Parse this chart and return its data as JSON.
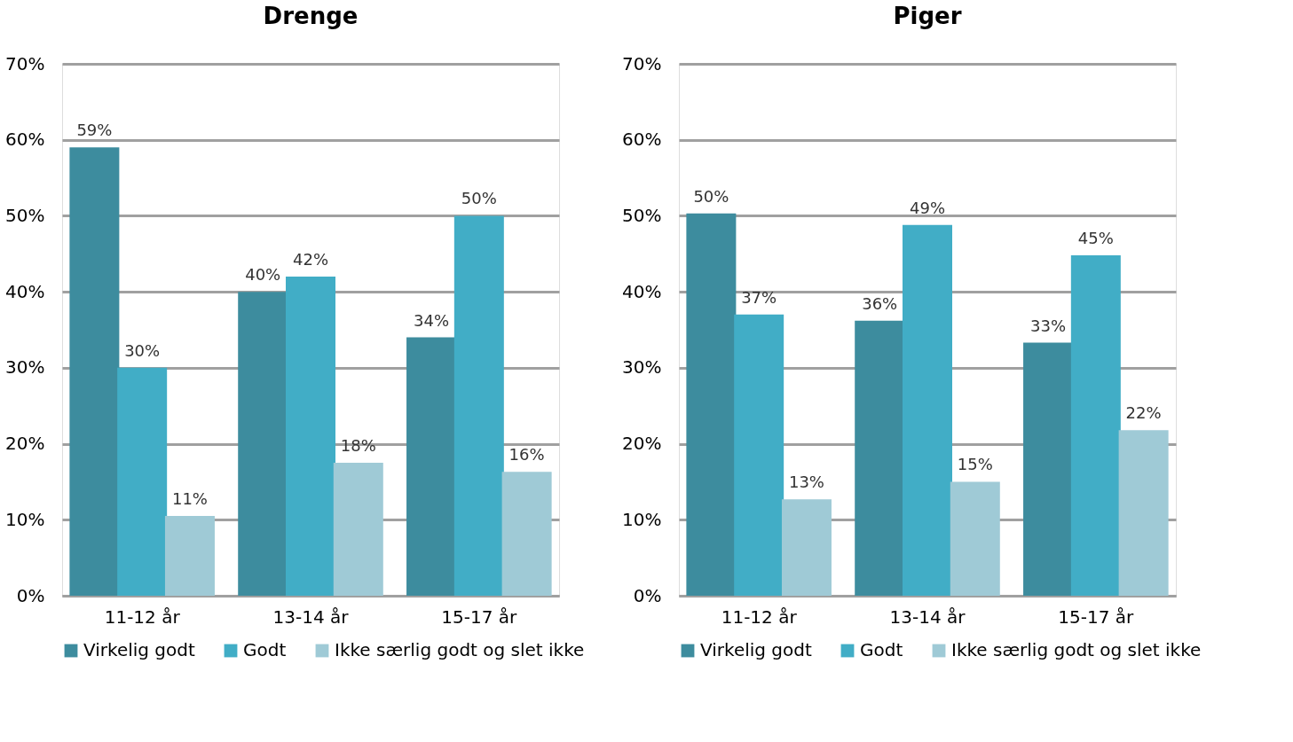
{
  "chart_data": [
    {
      "type": "bar",
      "title": "Drenge",
      "categories": [
        "11-12 år",
        "13-14 år",
        "15-17 år"
      ],
      "ylim": [
        0,
        70
      ],
      "yticks": [
        {
          "value": 0,
          "label": "0%"
        },
        {
          "value": 10,
          "label": "10%"
        },
        {
          "value": 20,
          "label": "20%"
        },
        {
          "value": 30,
          "label": "30%"
        },
        {
          "value": 40,
          "label": "40%"
        },
        {
          "value": 50,
          "label": "50%"
        },
        {
          "value": 60,
          "label": "60%"
        },
        {
          "value": 70,
          "label": "70%"
        }
      ],
      "grid": "y",
      "legend": "bottom",
      "series": [
        {
          "name": "Virkelig godt",
          "color": "#3d8c9e",
          "values": [
            59,
            40,
            34
          ],
          "value_labels": [
            "59%",
            "40%",
            "34%"
          ]
        },
        {
          "name": "Godt",
          "color": "#41adc6",
          "values": [
            30,
            42,
            50
          ],
          "value_labels": [
            "30%",
            "42%",
            "50%"
          ]
        },
        {
          "name": "Ikke særlig godt og slet ikke",
          "color": "#9fcad6",
          "values": [
            10.5,
            17.5,
            16.3
          ],
          "value_labels": [
            "11%",
            "18%",
            "16%"
          ]
        }
      ]
    },
    {
      "type": "bar",
      "title": "Piger",
      "categories": [
        "11-12 år",
        "13-14 år",
        "15-17 år"
      ],
      "ylim": [
        0,
        70
      ],
      "yticks": [
        {
          "value": 0,
          "label": "0%"
        },
        {
          "value": 10,
          "label": "10%"
        },
        {
          "value": 20,
          "label": "20%"
        },
        {
          "value": 30,
          "label": "30%"
        },
        {
          "value": 40,
          "label": "40%"
        },
        {
          "value": 50,
          "label": "50%"
        },
        {
          "value": 60,
          "label": "60%"
        },
        {
          "value": 70,
          "label": "70%"
        }
      ],
      "grid": "y",
      "legend": "bottom",
      "series": [
        {
          "name": "Virkelig godt",
          "color": "#3d8c9e",
          "values": [
            50.3,
            36.2,
            33.3
          ],
          "value_labels": [
            "50%",
            "36%",
            "33%"
          ]
        },
        {
          "name": "Godt",
          "color": "#41adc6",
          "values": [
            37,
            48.8,
            44.8
          ],
          "value_labels": [
            "37%",
            "49%",
            "45%"
          ]
        },
        {
          "name": "Ikke særlig godt og slet ikke",
          "color": "#9fcad6",
          "values": [
            12.7,
            15,
            21.8
          ],
          "value_labels": [
            "13%",
            "15%",
            "22%"
          ]
        }
      ]
    }
  ]
}
